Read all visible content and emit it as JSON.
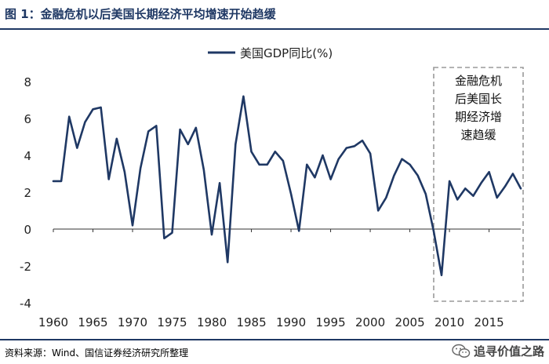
{
  "header": {
    "title": "图 1：金融危机以后美国长期经济平均增速开始趋缓"
  },
  "footer": {
    "source": "资料来源：Wind、国信证券经济研究所整理",
    "watermark": "追寻价值之路",
    "watermark_icon": "wechat-icon"
  },
  "chart_data": {
    "type": "line",
    "title": "",
    "xlabel": "",
    "ylabel": "",
    "xlim": [
      1960,
      2019
    ],
    "ylim": [
      -4,
      8
    ],
    "yticks": [
      -4,
      -2,
      0,
      2,
      4,
      6,
      8
    ],
    "xticks": [
      1960,
      1965,
      1970,
      1975,
      1980,
      1985,
      1990,
      1995,
      2000,
      2005,
      2010,
      2015
    ],
    "grid": false,
    "legend_position": "top-center",
    "series": [
      {
        "name": "美国GDP同比(%)",
        "color": "#1f3864",
        "x": [
          1960,
          1961,
          1962,
          1963,
          1964,
          1965,
          1966,
          1967,
          1968,
          1969,
          1970,
          1971,
          1972,
          1973,
          1974,
          1975,
          1976,
          1977,
          1978,
          1979,
          1980,
          1981,
          1982,
          1983,
          1984,
          1985,
          1986,
          1987,
          1988,
          1989,
          1990,
          1991,
          1992,
          1993,
          1994,
          1995,
          1996,
          1997,
          1998,
          1999,
          2000,
          2001,
          2002,
          2003,
          2004,
          2005,
          2006,
          2007,
          2008,
          2009,
          2010,
          2011,
          2012,
          2013,
          2014,
          2015,
          2016,
          2017,
          2018,
          2019
        ],
        "values": [
          2.6,
          2.6,
          6.1,
          4.4,
          5.8,
          6.5,
          6.6,
          2.7,
          4.9,
          3.1,
          0.2,
          3.3,
          5.3,
          5.6,
          -0.5,
          -0.2,
          5.4,
          4.6,
          5.5,
          3.2,
          -0.3,
          2.5,
          -1.8,
          4.6,
          7.2,
          4.2,
          3.5,
          3.5,
          4.2,
          3.7,
          1.9,
          -0.1,
          3.5,
          2.8,
          4.0,
          2.7,
          3.8,
          4.4,
          4.5,
          4.8,
          4.1,
          1.0,
          1.7,
          2.9,
          3.8,
          3.5,
          2.9,
          1.9,
          -0.1,
          -2.5,
          2.6,
          1.6,
          2.2,
          1.8,
          2.5,
          3.1,
          1.7,
          2.3,
          3.0,
          2.2
        ]
      }
    ],
    "annotation": {
      "lines": [
        "金融危机",
        "后美国长",
        "期经济增",
        "速趋缓"
      ],
      "x_range": [
        2009,
        2019
      ],
      "style": "dashed-box"
    }
  }
}
